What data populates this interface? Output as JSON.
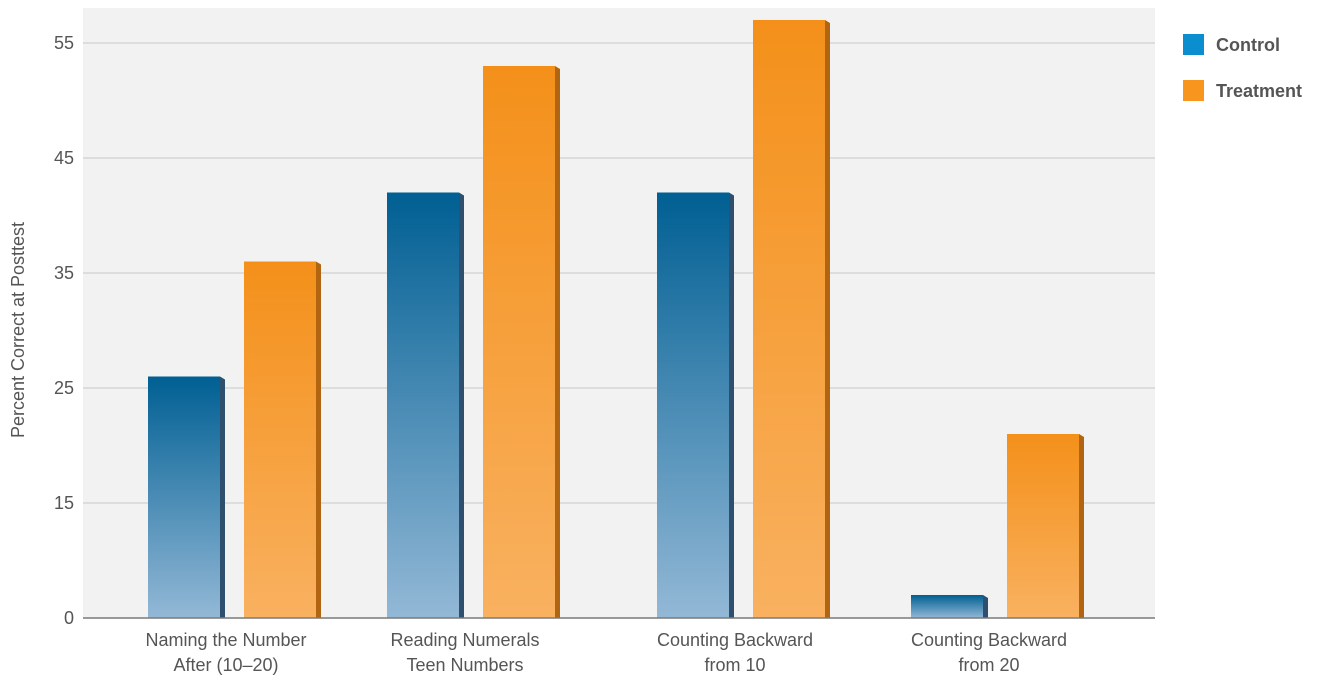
{
  "chart_data": {
    "type": "bar",
    "ylabel": "Percent Correct at Posttest",
    "xlabel": "",
    "title": "",
    "categories": [
      [
        "Naming the Number",
        "After (10–20)"
      ],
      [
        "Reading Numerals",
        "Teen Numbers"
      ],
      [
        "Counting Backward",
        "from 10"
      ],
      [
        "Counting Backward",
        "from 20"
      ]
    ],
    "y_ticks": [
      0,
      15,
      25,
      35,
      45,
      55
    ],
    "y_tick_labels": [
      "0",
      "15",
      "25",
      "35",
      "45",
      "55"
    ],
    "grid": true,
    "legend_position": "top-right",
    "series": [
      {
        "name": "Control",
        "values": [
          26,
          42,
          42,
          3
        ],
        "color_top": "#005f93",
        "color_bottom": "#93b8d6",
        "legend_color": "#0b8ed0"
      },
      {
        "name": "Treatment",
        "values": [
          36,
          53,
          57,
          21
        ],
        "color_top": "#f4901a",
        "color_bottom": "#f9b160",
        "legend_color": "#f7951f"
      }
    ]
  },
  "colors": {
    "plot_background": "#f2f2f2",
    "gridline": "#c8c8c8",
    "axis_line": "#7a7a7a",
    "text": "#555555"
  }
}
